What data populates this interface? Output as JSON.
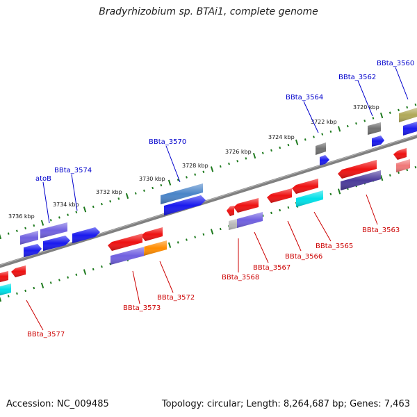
{
  "title": "Bradyrhizobium sp. BTAi1, complete genome",
  "footer": {
    "accession": "Accession: NC_009485",
    "summary": "Topology: circular; Length: 8,264,687 bp; Genes: 7,463"
  },
  "colors": {
    "backbone": "#808080",
    "tick": "#1e7a1e",
    "upper_label": "#0000cc",
    "lower_label": "#cc0000"
  },
  "ticks": [
    {
      "label": "3736 kbp"
    },
    {
      "label": "3734 kbp"
    },
    {
      "label": "3732 kbp"
    },
    {
      "label": "3730 kbp"
    },
    {
      "label": "3728 kbp"
    },
    {
      "label": "3726 kbp"
    },
    {
      "label": "3724 kbp"
    },
    {
      "label": "3722 kbp"
    },
    {
      "label": "3720 kbp"
    }
  ],
  "genes": [
    {
      "label": "atoB",
      "strand": "upper",
      "color": "#0000cc"
    },
    {
      "label": "BBta_3574",
      "strand": "upper",
      "color": "#0000cc"
    },
    {
      "label": "BBta_3570",
      "strand": "upper",
      "color": "#0000cc"
    },
    {
      "label": "BBta_3564",
      "strand": "upper",
      "color": "#0000cc"
    },
    {
      "label": "BBta_3562",
      "strand": "upper",
      "color": "#0000cc"
    },
    {
      "label": "BBta_3560",
      "strand": "upper",
      "color": "#0000cc"
    },
    {
      "label": "BBta_3577",
      "strand": "lower",
      "color": "#cc0000"
    },
    {
      "label": "BBta_3573",
      "strand": "lower",
      "color": "#cc0000"
    },
    {
      "label": "BBta_3572",
      "strand": "lower",
      "color": "#cc0000"
    },
    {
      "label": "BBta_3568",
      "strand": "lower",
      "color": "#cc0000"
    },
    {
      "label": "BBta_3567",
      "strand": "lower",
      "color": "#cc0000"
    },
    {
      "label": "BBta_3566",
      "strand": "lower",
      "color": "#cc0000"
    },
    {
      "label": "BBta_3565",
      "strand": "lower",
      "color": "#cc0000"
    },
    {
      "label": "BBta_3563",
      "strand": "lower",
      "color": "#cc0000"
    }
  ]
}
